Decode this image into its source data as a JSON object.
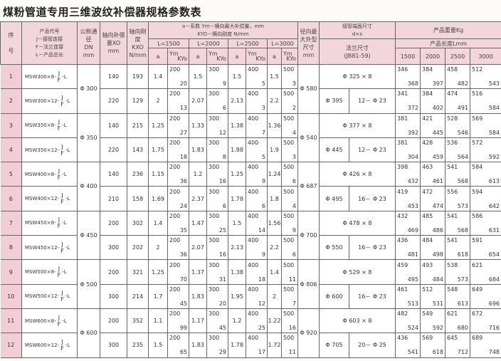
{
  "title": "煤粉管道专用三维波纹补偿器规格参数表",
  "header": {
    "seq_top": "序",
    "seq_bottom": "号",
    "code_title": "产品代号",
    "code_j": "J－接管连接",
    "code_f": "F－法兰连接",
    "code_l": "L－产品总长",
    "dn": "公称通径",
    "dn_sym": "DN",
    "dn_unit": "mm",
    "xo": "轴向补偿",
    "xo_sym": "量XO",
    "xo_unit": "mm",
    "kxo": "轴向刚度",
    "kxo_sym": "KXO",
    "kxo_unit": "N/mm",
    "lateral_line1": "a－系数 Ym－横向最大补偿量，mm",
    "lateral_line2": "KYO－横向刚度 N/mm",
    "lengths": [
      "L=1500",
      "L=2000",
      "L=2500",
      "L=3000"
    ],
    "a": "a",
    "ym": "Ym",
    "kyo": "KYo",
    "radial": "径向最大外型尺寸",
    "radial_unit": "mm",
    "pipe_end": "接管端面尺寸",
    "pipe_end_sym": "d×s",
    "flange": "法兰尺寸",
    "flange_std": "(JB81-59)",
    "weight": "产品重量Kg",
    "product_length": "产品长度Lmm",
    "weight_lengths": [
      "1500",
      "2000",
      "2500",
      "3000"
    ]
  },
  "code_parts": {
    "j": "J",
    "f": "F",
    "suffix": "-L"
  },
  "groups": [
    {
      "dn": "Φ 300",
      "radial": "Φ 580",
      "pipe": "Φ 325 × 8",
      "flange_od": "Φ 395",
      "bolts": "12－ Φ 23"
    },
    {
      "dn": "Φ 350",
      "radial": "Φ 540",
      "pipe": "Φ 377 × 8",
      "flange_od": "Φ 445",
      "bolts": "12－ Φ 23"
    },
    {
      "dn": "Φ 400",
      "radial": "Φ 687",
      "pipe": "Φ 426 × 8",
      "flange_od": "Φ 495",
      "bolts": "16－ Φ 23"
    },
    {
      "dn": "Φ 450",
      "radial": "Φ 700",
      "pipe": "Φ 478 × 8",
      "flange_od": "Φ 550",
      "bolts": "16－ Φ 23"
    },
    {
      "dn": "Φ 500",
      "radial": "Φ 806",
      "pipe": "Φ 529 × 8",
      "flange_od": "Φ 600",
      "bolts": "16－ Φ 23"
    },
    {
      "dn": "Φ 600",
      "radial": "Φ 920",
      "pipe": "Φ 603 × 8",
      "flange_od": "Φ 705",
      "bolts": "20－ Φ 25"
    }
  ],
  "rows": [
    {
      "seq": "1",
      "code": "MSW300×8-",
      "xo": "140",
      "kxo": "193",
      "L": [
        [
          "1.4",
          "200",
          "20"
        ],
        [
          "1.5",
          "300",
          "9"
        ],
        [
          "1.5",
          "400",
          "5"
        ],
        [
          "1.5",
          "500",
          "3"
        ]
      ],
      "w": [
        [
          "346",
          "368"
        ],
        [
          "384",
          "397"
        ],
        [
          "458",
          "482"
        ],
        [
          "512",
          "543"
        ]
      ]
    },
    {
      "seq": "2",
      "code": "MSW300×12-",
      "xo": "220",
      "kxo": "129",
      "L": [
        [
          "2",
          "200",
          "13"
        ],
        [
          "2.07",
          "300",
          "6"
        ],
        [
          "2.13",
          "400",
          "3"
        ],
        [
          "2.2",
          "500",
          "2"
        ]
      ],
      "w": [
        [
          "341",
          "372"
        ],
        [
          "384",
          "402"
        ],
        [
          "474",
          "491"
        ],
        [
          "516",
          "584"
        ]
      ]
    },
    {
      "seq": "3",
      "code": "MSW350×8-",
      "xo": "140",
      "kxo": "215",
      "L": [
        [
          "1.25",
          "200",
          "27"
        ],
        [
          "1.33",
          "300",
          "12"
        ],
        [
          "1.38",
          "400",
          "7"
        ],
        [
          "1.36",
          "500",
          "4"
        ]
      ],
      "w": [
        [
          "381",
          "392"
        ],
        [
          "421",
          "445"
        ],
        [
          "528",
          "546"
        ],
        [
          "569",
          "584"
        ]
      ]
    },
    {
      "seq": "4",
      "code": "MSW350×12-",
      "xo": "220",
      "kxo": "143",
      "L": [
        [
          "1.75",
          "200",
          "18"
        ],
        [
          "1.83",
          "300",
          "8"
        ],
        [
          "1.88",
          "400",
          "5"
        ],
        [
          "1.9",
          "500",
          "3"
        ]
      ],
      "w": [
        [
          "381",
          "304"
        ],
        [
          "428",
          "459"
        ],
        [
          "536",
          "564"
        ],
        [
          "572",
          "592"
        ]
      ]
    },
    {
      "seq": "5",
      "code": "MSW400×8-",
      "xo": "140",
      "kxo": "236",
      "L": [
        [
          "1.15",
          "200",
          "36"
        ],
        [
          "1.2",
          "300",
          "16"
        ],
        [
          "1.25",
          "400",
          "9"
        ],
        [
          "1.24",
          "500",
          "6"
        ]
      ],
      "w": [
        [
          "398",
          "432"
        ],
        [
          "463",
          "461"
        ],
        [
          "541",
          "568"
        ],
        [
          "584",
          "613"
        ]
      ]
    },
    {
      "seq": "6",
      "code": "MSW400×12-",
      "xo": "210",
      "kxo": "158",
      "L": [
        [
          "1.69",
          "200",
          "24"
        ],
        [
          "2.37",
          "300",
          "6"
        ],
        [
          "1.78",
          "400",
          "6"
        ],
        [
          "1.8",
          "500",
          "4"
        ]
      ],
      "w": [
        [
          "419",
          "453"
        ],
        [
          "472",
          "474"
        ],
        [
          "556",
          "573"
        ],
        [
          "594",
          "642"
        ]
      ]
    },
    {
      "seq": "7",
      "code": "MSW450×8-",
      "xo": "200",
      "kxo": "302",
      "L": [
        [
          "1.4",
          "200",
          "35"
        ],
        [
          "1.47",
          "300",
          "25"
        ],
        [
          "1.5",
          "400",
          "14"
        ],
        [
          "1.56",
          "500",
          "9"
        ]
      ],
      "w": [
        [
          "432",
          "469"
        ],
        [
          "485",
          "486"
        ],
        [
          "541",
          "568"
        ],
        [
          "586",
          "631"
        ]
      ]
    },
    {
      "seq": "8",
      "code": "MSW450×12-",
      "xo": "300",
      "kxo": "202",
      "L": [
        [
          "2",
          "200",
          "36"
        ],
        [
          "2.07",
          "300",
          "16"
        ],
        [
          "2.13",
          "400",
          "9"
        ],
        [
          "2.2",
          "500",
          "6"
        ]
      ],
      "w": [
        [
          "436",
          "481"
        ],
        [
          "484",
          "498"
        ],
        [
          "541",
          "618"
        ],
        [
          "591",
          "654"
        ]
      ]
    },
    {
      "seq": "9",
      "code": "MSW500×8-",
      "xo": "200",
      "kxo": "321",
      "L": [
        [
          "1.25",
          "200",
          "70"
        ],
        [
          "1.37",
          "300",
          "31"
        ],
        [
          "1.38",
          "400",
          "18"
        ],
        [
          "1.4",
          "500",
          "11"
        ]
      ],
      "w": [
        [
          "459",
          "495"
        ],
        [
          "493",
          "484"
        ],
        [
          "538",
          "573"
        ],
        [
          "621",
          "684"
        ]
      ]
    },
    {
      "seq": "10",
      "code": "MSW500×12-",
      "xo": "300",
      "kxo": "214",
      "L": [
        [
          "1.7",
          "200",
          "45"
        ],
        [
          "1.83",
          "300",
          "20"
        ],
        [
          "1.95",
          "400",
          "12"
        ],
        [
          "2",
          "500",
          "7"
        ]
      ],
      "w": [
        [
          "461",
          "513"
        ],
        [
          "512",
          "531"
        ],
        [
          "548",
          "613"
        ],
        [
          "649",
          "696"
        ]
      ]
    },
    {
      "seq": "11",
      "code": "MSW600×8-",
      "xo": "200",
      "kxo": "352",
      "L": [
        [
          "1.1",
          "200",
          "99"
        ],
        [
          "1.17",
          "300",
          "45"
        ],
        [
          "1.2",
          "400",
          "25"
        ],
        [
          "1.22",
          "500",
          "16"
        ]
      ],
      "w": [
        [
          "482",
          "524"
        ],
        [
          "549",
          "592"
        ],
        [
          "621",
          "680"
        ],
        [
          "672",
          "716"
        ]
      ]
    },
    {
      "seq": "12",
      "code": "MSW600×12-",
      "xo": "300",
      "kxo": "235",
      "L": [
        [
          "1.5",
          "200",
          "65"
        ],
        [
          "1.83",
          "300",
          "29"
        ],
        [
          "1.78",
          "400",
          "17"
        ],
        [
          "1.72",
          "500",
          "11"
        ]
      ],
      "w": [
        [
          "436",
          "541"
        ],
        [
          "569",
          "618"
        ],
        [
          "645",
          "712"
        ],
        [
          "689",
          "748"
        ]
      ]
    }
  ]
}
